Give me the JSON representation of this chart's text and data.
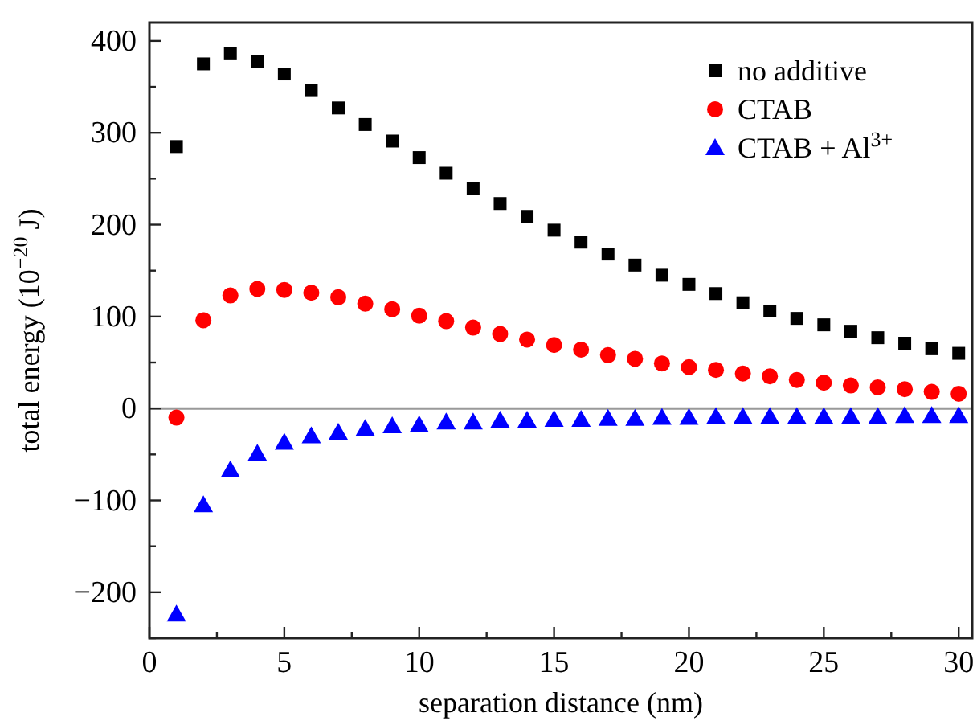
{
  "chart_data": {
    "type": "scatter",
    "xlabel": "separation distance (nm)",
    "ylabel": "total energy (10$^{−20}$ J)",
    "x": [
      1,
      2,
      3,
      4,
      5,
      6,
      7,
      8,
      9,
      10,
      11,
      12,
      13,
      14,
      15,
      16,
      17,
      18,
      19,
      20,
      21,
      22,
      23,
      24,
      25,
      26,
      27,
      28,
      29,
      30
    ],
    "xlim": [
      0,
      30.5
    ],
    "xticks": [
      0,
      {
        "value": 2.5,
        "label": null
      },
      5,
      {
        "value": 7.5,
        "label": null
      },
      10,
      {
        "value": 12.5,
        "label": null
      },
      15,
      {
        "value": 17.5,
        "label": null
      },
      20,
      {
        "value": 22.5,
        "label": null
      },
      25,
      {
        "value": 27.5,
        "label": null
      },
      30
    ],
    "ylim": [
      -250,
      420
    ],
    "yticks": [
      {
        "value": -250,
        "label": null
      },
      -200,
      {
        "value": -150,
        "label": null
      },
      -100,
      {
        "value": -50,
        "label": null
      },
      0,
      {
        "value": 50,
        "label": null
      },
      100,
      {
        "value": 150,
        "label": null
      },
      200,
      {
        "value": 250,
        "label": null
      },
      300,
      {
        "value": 350,
        "label": null
      },
      400
    ],
    "legend": "top right",
    "grid": false,
    "ref_lines": [
      {
        "axis": "y",
        "value": 0,
        "color": "#999999"
      }
    ],
    "series": [
      {
        "name": "no additive",
        "color": "#000000",
        "marker": "square",
        "values": [
          285,
          375,
          386,
          378,
          364,
          346,
          327,
          309,
          291,
          273,
          256,
          239,
          223,
          209,
          194,
          181,
          168,
          156,
          145,
          135,
          125,
          115,
          106,
          98,
          91,
          84,
          77,
          71,
          65,
          60
        ]
      },
      {
        "name": "CTAB",
        "color": "#ff0000",
        "marker": "circle",
        "values": [
          -10,
          96,
          123,
          130,
          129,
          126,
          121,
          114,
          108,
          101,
          95,
          88,
          81,
          75,
          69,
          64,
          58,
          54,
          49,
          45,
          42,
          38,
          35,
          31,
          28,
          25,
          23,
          21,
          18,
          16
        ]
      },
      {
        "name": "CTAB + Al$^{3+}$",
        "color": "#0000ff",
        "marker": "triangle",
        "values": [
          -224,
          -105,
          -67,
          -49,
          -37,
          -30,
          -26,
          -22,
          -19,
          -18,
          -15,
          -15,
          -13,
          -13,
          -12,
          -12,
          -11,
          -11,
          -10,
          -10,
          -9,
          -9,
          -9,
          -9,
          -9,
          -9,
          -9,
          -8,
          -8,
          -8
        ]
      }
    ]
  }
}
